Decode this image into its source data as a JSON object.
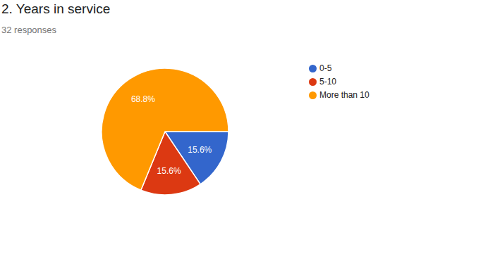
{
  "chart_data": {
    "type": "pie",
    "title": "2. Years in service",
    "subtitle": "32 responses",
    "categories": [
      "0-5",
      "5-10",
      "More than 10"
    ],
    "values": [
      15.6,
      15.6,
      68.8
    ],
    "value_labels": [
      "15.6%",
      "15.6%",
      "68.8%"
    ],
    "colors": [
      "#3366cc",
      "#dc3912",
      "#ff9900"
    ],
    "data_labels": true,
    "legend": "right"
  }
}
